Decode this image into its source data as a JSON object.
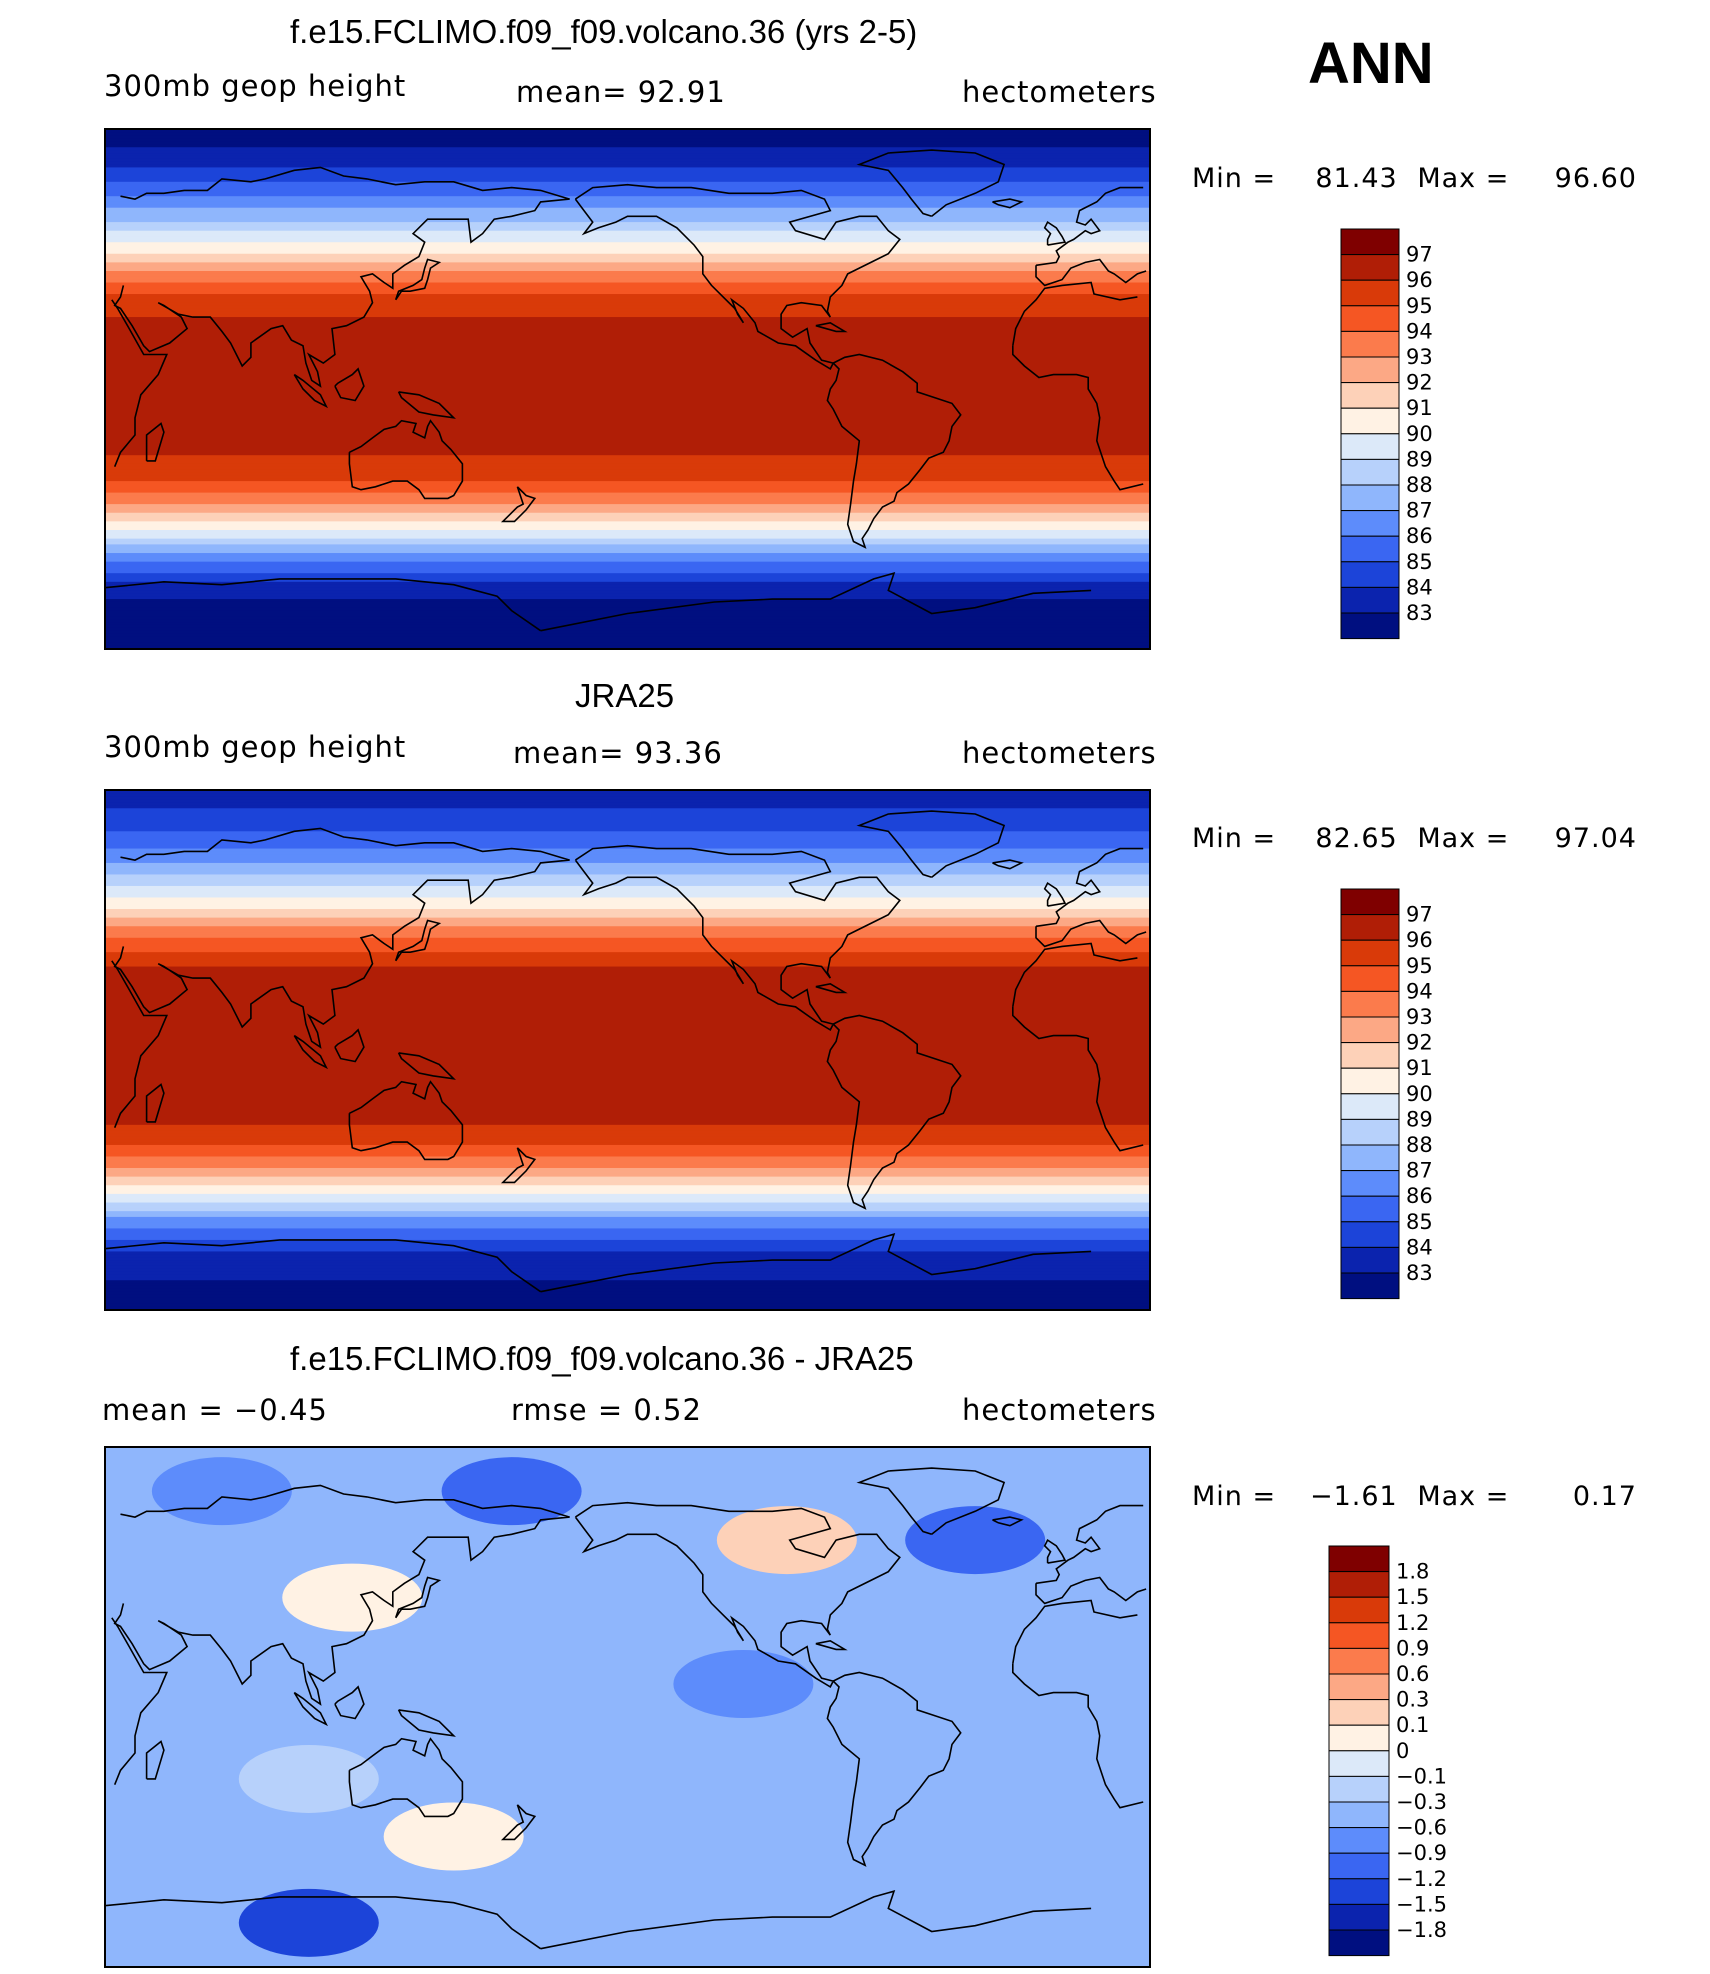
{
  "season_label": "ANN",
  "land_outline_color": "#000000",
  "panels": [
    {
      "title": "f.e15.FCLIMO.f09_f09.volcano.36 (yrs 2-5)",
      "left_label": "300mb  geop  height",
      "center_label": "mean=   92.91",
      "right_label": "hectometers",
      "min_label": "Min  =",
      "min_value": "81.43",
      "max_label": "Max  =",
      "max_value": "96.60"
    },
    {
      "title": "JRA25",
      "left_label": "300mb  geop  height",
      "center_label": "mean=   93.36",
      "right_label": "hectometers",
      "min_label": "Min  =",
      "min_value": "82.65",
      "max_label": "Max  =",
      "max_value": "97.04"
    },
    {
      "title": "f.e15.FCLIMO.f09_f09.volcano.36 - JRA25",
      "left_label": "mean  =    −0.45",
      "center_label": "rmse  =     0.52",
      "right_label": "hectometers",
      "min_label": "Min  =",
      "min_value": "−1.61",
      "max_label": "Max  =",
      "max_value": "0.17"
    }
  ],
  "chart_data": [
    {
      "type": "heatmap",
      "title": "f.e15.FCLIMO.f09_f09.volcano.36 (yrs 2-5)",
      "variable": "300mb geop height",
      "units": "hectometers",
      "mean": 92.91,
      "min": 81.43,
      "max": 96.6,
      "colorbar": {
        "tick_labels": [
          "97",
          "96",
          "95",
          "94",
          "93",
          "92",
          "91",
          "90",
          "89",
          "88",
          "87",
          "86",
          "85",
          "84",
          "83"
        ],
        "colors": [
          "#7f0000",
          "#b01e06",
          "#d93a09",
          "#f55623",
          "#fb7b4c",
          "#fca885",
          "#fdd1b8",
          "#fff2e4",
          "#dce9f9",
          "#b7d1fb",
          "#8fb6fc",
          "#5d8cfb",
          "#3a66f2",
          "#1c44d9",
          "#0b23ae",
          "#000f80"
        ]
      },
      "latitude_profile": [
        {
          "lat": 90,
          "value": 82.5
        },
        {
          "lat": 80,
          "value": 83.3
        },
        {
          "lat": 70,
          "value": 85.4
        },
        {
          "lat": 60,
          "value": 87.6
        },
        {
          "lat": 50,
          "value": 90.2
        },
        {
          "lat": 40,
          "value": 93.3
        },
        {
          "lat": 30,
          "value": 95.6
        },
        {
          "lat": 20,
          "value": 96.4
        },
        {
          "lat": 0,
          "value": 96.6
        },
        {
          "lat": -20,
          "value": 96.3
        },
        {
          "lat": -30,
          "value": 95.4
        },
        {
          "lat": -40,
          "value": 93.0
        },
        {
          "lat": -50,
          "value": 89.6
        },
        {
          "lat": -60,
          "value": 86.0
        },
        {
          "lat": -70,
          "value": 83.3
        },
        {
          "lat": -80,
          "value": 82.2
        },
        {
          "lat": -90,
          "value": 81.6
        }
      ]
    },
    {
      "type": "heatmap",
      "title": "JRA25",
      "variable": "300mb geop height",
      "units": "hectometers",
      "mean": 93.36,
      "min": 82.65,
      "max": 97.04,
      "colorbar": {
        "tick_labels": [
          "97",
          "96",
          "95",
          "94",
          "93",
          "92",
          "91",
          "90",
          "89",
          "88",
          "87",
          "86",
          "85",
          "84",
          "83"
        ],
        "colors": [
          "#7f0000",
          "#b01e06",
          "#d93a09",
          "#f55623",
          "#fb7b4c",
          "#fca885",
          "#fdd1b8",
          "#fff2e4",
          "#dce9f9",
          "#b7d1fb",
          "#8fb6fc",
          "#5d8cfb",
          "#3a66f2",
          "#1c44d9",
          "#0b23ae",
          "#000f80"
        ]
      },
      "latitude_profile": [
        {
          "lat": 90,
          "value": 83.5
        },
        {
          "lat": 80,
          "value": 84.3
        },
        {
          "lat": 70,
          "value": 86.0
        },
        {
          "lat": 60,
          "value": 88.2
        },
        {
          "lat": 50,
          "value": 90.8
        },
        {
          "lat": 40,
          "value": 93.8
        },
        {
          "lat": 30,
          "value": 95.9
        },
        {
          "lat": 20,
          "value": 96.6
        },
        {
          "lat": 0,
          "value": 96.8
        },
        {
          "lat": -20,
          "value": 96.5
        },
        {
          "lat": -30,
          "value": 95.7
        },
        {
          "lat": -40,
          "value": 93.4
        },
        {
          "lat": -50,
          "value": 90.0
        },
        {
          "lat": -60,
          "value": 86.4
        },
        {
          "lat": -70,
          "value": 84.0
        },
        {
          "lat": -80,
          "value": 83.0
        },
        {
          "lat": -90,
          "value": 82.7
        }
      ]
    },
    {
      "type": "heatmap",
      "title": "f.e15.FCLIMO.f09_f09.volcano.36 - JRA25",
      "units": "hectometers",
      "mean": -0.45,
      "rmse": 0.52,
      "min": -1.61,
      "max": 0.17,
      "colorbar": {
        "tick_labels": [
          "1.8",
          "1.5",
          "1.2",
          "0.9",
          "0.6",
          "0.3",
          "0.1",
          "0",
          "−0.1",
          "−0.3",
          "−0.6",
          "−0.9",
          "−1.2",
          "−1.5",
          "−1.8"
        ],
        "colors": [
          "#7f0000",
          "#b01e06",
          "#d93a09",
          "#f55623",
          "#fb7b4c",
          "#fca885",
          "#fdd1b8",
          "#fff2e4",
          "#dce9f9",
          "#b7d1fb",
          "#8fb6fc",
          "#5d8cfb",
          "#3a66f2",
          "#1c44d9",
          "#0b23ae",
          "#000f80"
        ]
      },
      "background_value": -0.45,
      "features": [
        {
          "lon": 115,
          "lat": 38,
          "value": 0.05
        },
        {
          "lon": 70,
          "lat": 75,
          "value": -0.85
        },
        {
          "lon": 170,
          "lat": 75,
          "value": -0.95
        },
        {
          "lon": 265,
          "lat": 58,
          "value": 0.1
        },
        {
          "lon": 330,
          "lat": 58,
          "value": -1.1
        },
        {
          "lon": 250,
          "lat": 8,
          "value": -0.7
        },
        {
          "lon": 150,
          "lat": -45,
          "value": 0.05
        },
        {
          "lon": 100,
          "lat": -25,
          "value": -0.2
        },
        {
          "lon": 100,
          "lat": -75,
          "value": -1.4
        }
      ]
    }
  ]
}
